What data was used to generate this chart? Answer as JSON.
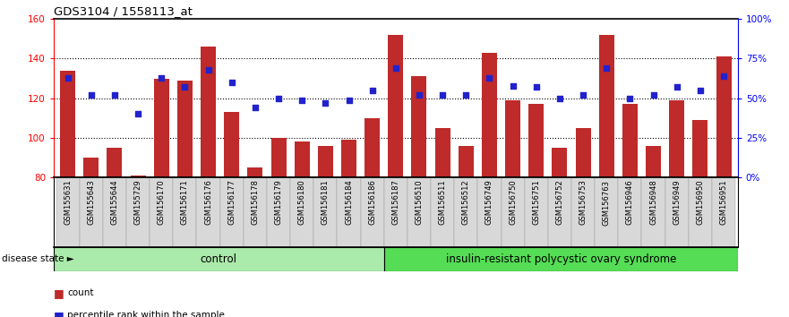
{
  "title": "GDS3104 / 1558113_at",
  "samples": [
    "GSM155631",
    "GSM155643",
    "GSM155644",
    "GSM155729",
    "GSM156170",
    "GSM156171",
    "GSM156176",
    "GSM156177",
    "GSM156178",
    "GSM156179",
    "GSM156180",
    "GSM156181",
    "GSM156184",
    "GSM156186",
    "GSM156187",
    "GSM156510",
    "GSM156511",
    "GSM156512",
    "GSM156749",
    "GSM156750",
    "GSM156751",
    "GSM156752",
    "GSM156753",
    "GSM156763",
    "GSM156946",
    "GSM156948",
    "GSM156949",
    "GSM156950",
    "GSM156951"
  ],
  "bar_values": [
    134,
    90,
    95,
    81,
    130,
    129,
    146,
    113,
    85,
    100,
    98,
    96,
    99,
    110,
    152,
    131,
    105,
    96,
    143,
    119,
    117,
    95,
    105,
    152,
    117,
    96,
    119,
    109,
    141
  ],
  "dot_values_pct": [
    63,
    52,
    52,
    40,
    63,
    57,
    68,
    60,
    44,
    50,
    49,
    47,
    49,
    55,
    69,
    52,
    52,
    52,
    63,
    58,
    57,
    50,
    52,
    69,
    50,
    52,
    57,
    55,
    64
  ],
  "control_count": 14,
  "ylim_left": [
    80,
    160
  ],
  "yticks_left": [
    80,
    100,
    120,
    140,
    160
  ],
  "yticks_right": [
    0,
    25,
    50,
    75,
    100
  ],
  "ytick_labels_right": [
    "0%",
    "25%",
    "50%",
    "75%",
    "100%"
  ],
  "bar_color": "#BF2A2A",
  "dot_color": "#2222CC",
  "bar_bottom": 80,
  "control_label": "control",
  "disease_label": "insulin-resistant polycystic ovary syndrome",
  "legend_count_label": "count",
  "legend_pct_label": "percentile rank within the sample",
  "disease_state_label": "disease state"
}
